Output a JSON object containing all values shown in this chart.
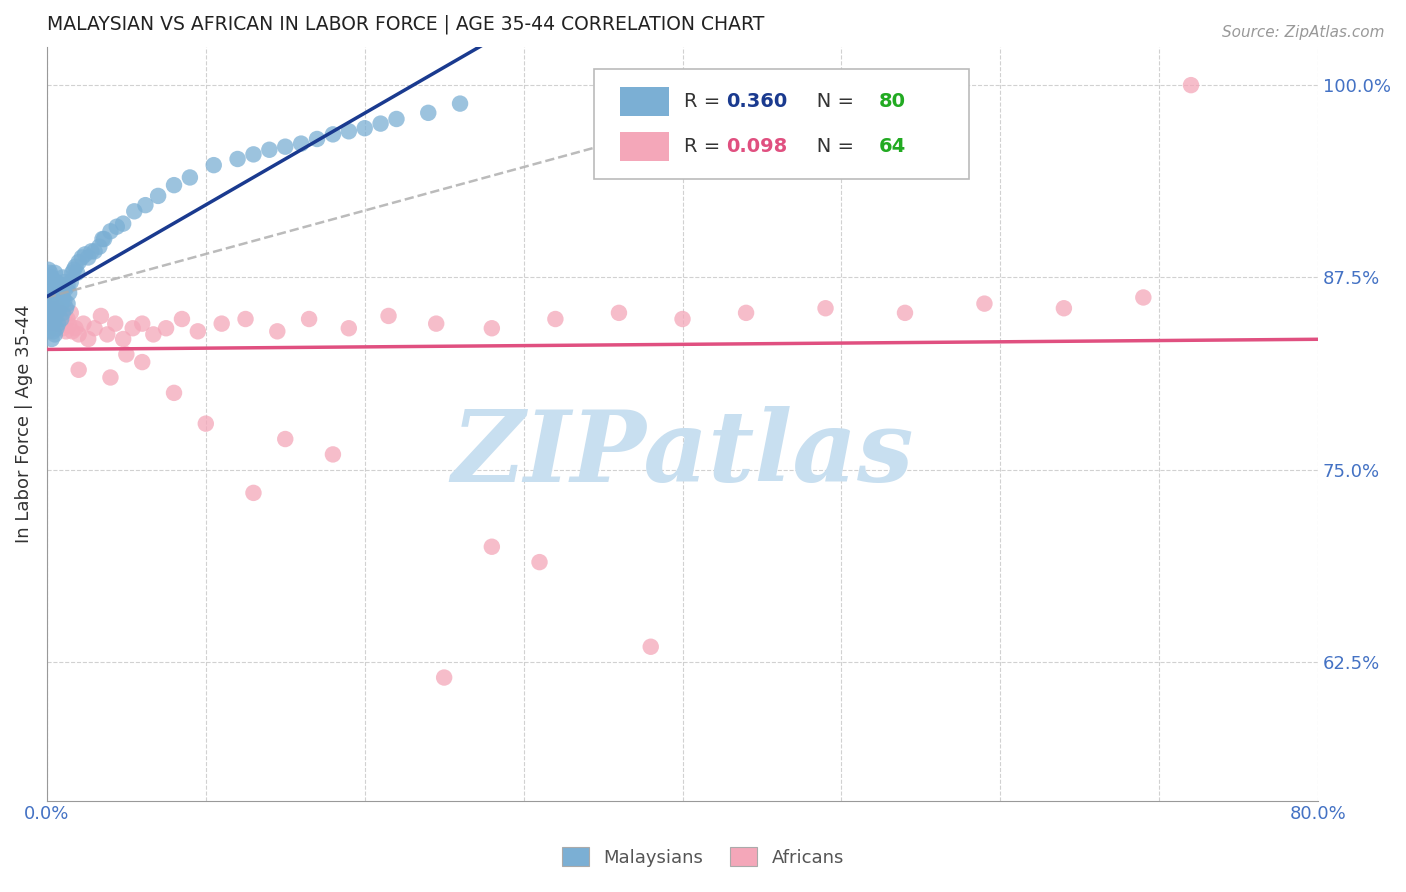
{
  "title": "MALAYSIAN VS AFRICAN IN LABOR FORCE | AGE 35-44 CORRELATION CHART",
  "source": "Source: ZipAtlas.com",
  "ylabel": "In Labor Force | Age 35-44",
  "xlim": [
    0.0,
    0.8
  ],
  "ylim": [
    0.535,
    1.025
  ],
  "yticks": [
    0.625,
    0.75,
    0.875,
    1.0
  ],
  "ytick_labels": [
    "62.5%",
    "75.0%",
    "87.5%",
    "100.0%"
  ],
  "xticks": [
    0.0,
    0.1,
    0.2,
    0.3,
    0.4,
    0.5,
    0.6,
    0.7,
    0.8
  ],
  "xtick_labels": [
    "0.0%",
    "",
    "",
    "",
    "",
    "",
    "",
    "",
    "80.0%"
  ],
  "malaysian_color": "#7bafd4",
  "african_color": "#f4a7b9",
  "malaysian_line_color": "#1a3a8f",
  "african_line_color": "#e05080",
  "R_malaysian": 0.36,
  "N_malaysian": 80,
  "R_african": 0.098,
  "N_african": 64,
  "watermark": "ZIPatlas",
  "watermark_color": "#c8dff0",
  "legend_label_malaysian": "Malaysians",
  "legend_label_african": "Africans",
  "axis_label_color": "#4472c4",
  "title_color": "#222222",
  "grid_color": "#cccccc",
  "background_color": "#ffffff",
  "mal_x": [
    0.001,
    0.001,
    0.001,
    0.001,
    0.002,
    0.002,
    0.002,
    0.002,
    0.003,
    0.003,
    0.003,
    0.003,
    0.003,
    0.004,
    0.004,
    0.004,
    0.004,
    0.005,
    0.005,
    0.005,
    0.005,
    0.005,
    0.006,
    0.006,
    0.006,
    0.006,
    0.007,
    0.007,
    0.007,
    0.008,
    0.008,
    0.009,
    0.009,
    0.009,
    0.01,
    0.01,
    0.01,
    0.011,
    0.011,
    0.012,
    0.012,
    0.013,
    0.013,
    0.014,
    0.015,
    0.016,
    0.017,
    0.018,
    0.019,
    0.02,
    0.022,
    0.024,
    0.026,
    0.028,
    0.03,
    0.033,
    0.036,
    0.04,
    0.044,
    0.048,
    0.055,
    0.062,
    0.07,
    0.08,
    0.09,
    0.105,
    0.12,
    0.14,
    0.16,
    0.18,
    0.2,
    0.22,
    0.24,
    0.26,
    0.13,
    0.15,
    0.17,
    0.19,
    0.21,
    0.035
  ],
  "mal_y": [
    0.88,
    0.87,
    0.86,
    0.85,
    0.878,
    0.865,
    0.855,
    0.845,
    0.875,
    0.865,
    0.855,
    0.845,
    0.835,
    0.87,
    0.86,
    0.85,
    0.84,
    0.878,
    0.868,
    0.858,
    0.848,
    0.838,
    0.872,
    0.862,
    0.852,
    0.842,
    0.865,
    0.855,
    0.845,
    0.868,
    0.855,
    0.87,
    0.858,
    0.848,
    0.875,
    0.862,
    0.852,
    0.872,
    0.86,
    0.868,
    0.855,
    0.87,
    0.858,
    0.865,
    0.872,
    0.878,
    0.88,
    0.882,
    0.878,
    0.885,
    0.888,
    0.89,
    0.888,
    0.892,
    0.892,
    0.895,
    0.9,
    0.905,
    0.908,
    0.91,
    0.918,
    0.922,
    0.928,
    0.935,
    0.94,
    0.948,
    0.952,
    0.958,
    0.962,
    0.968,
    0.972,
    0.978,
    0.982,
    0.988,
    0.955,
    0.96,
    0.965,
    0.97,
    0.975,
    0.9
  ],
  "afr_x": [
    0.001,
    0.001,
    0.002,
    0.002,
    0.003,
    0.004,
    0.005,
    0.006,
    0.007,
    0.008,
    0.009,
    0.01,
    0.011,
    0.012,
    0.013,
    0.014,
    0.015,
    0.016,
    0.018,
    0.02,
    0.023,
    0.026,
    0.03,
    0.034,
    0.038,
    0.043,
    0.048,
    0.054,
    0.06,
    0.067,
    0.075,
    0.085,
    0.095,
    0.11,
    0.125,
    0.145,
    0.165,
    0.19,
    0.215,
    0.245,
    0.28,
    0.32,
    0.36,
    0.4,
    0.44,
    0.49,
    0.54,
    0.59,
    0.64,
    0.69,
    0.28,
    0.18,
    0.1,
    0.06,
    0.04,
    0.02,
    0.31,
    0.15,
    0.08,
    0.05,
    0.72,
    0.38,
    0.25,
    0.13
  ],
  "afr_y": [
    0.85,
    0.84,
    0.855,
    0.845,
    0.858,
    0.848,
    0.852,
    0.845,
    0.855,
    0.848,
    0.852,
    0.842,
    0.85,
    0.84,
    0.848,
    0.844,
    0.852,
    0.84,
    0.842,
    0.838,
    0.845,
    0.835,
    0.842,
    0.85,
    0.838,
    0.845,
    0.835,
    0.842,
    0.845,
    0.838,
    0.842,
    0.848,
    0.84,
    0.845,
    0.848,
    0.84,
    0.848,
    0.842,
    0.85,
    0.845,
    0.842,
    0.848,
    0.852,
    0.848,
    0.852,
    0.855,
    0.852,
    0.858,
    0.855,
    0.862,
    0.7,
    0.76,
    0.78,
    0.82,
    0.81,
    0.815,
    0.69,
    0.77,
    0.8,
    0.825,
    1.0,
    0.635,
    0.615,
    0.735
  ],
  "dashed_line_x": [
    0.0,
    0.4
  ],
  "dashed_line_y": [
    0.862,
    0.975
  ]
}
